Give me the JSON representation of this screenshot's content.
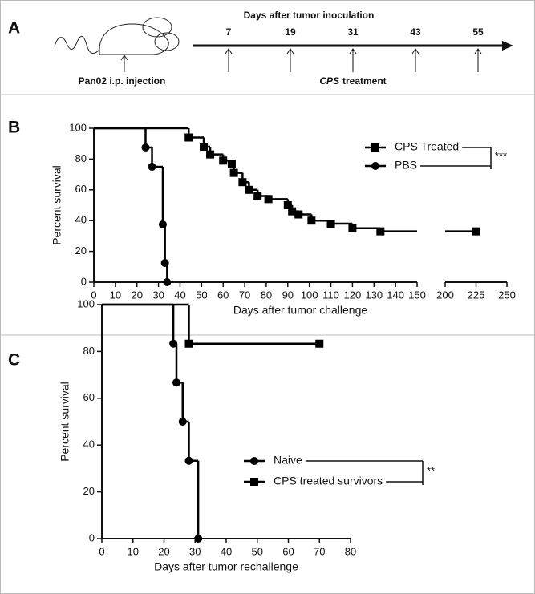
{
  "panels": {
    "a": "A",
    "b": "B",
    "c": "C"
  },
  "schedule": {
    "title": "Days after tumor inoculation",
    "days": [
      7,
      19,
      31,
      43,
      55
    ],
    "injection": "Pan02 i.p. injection",
    "treatment_drug": "CPS",
    "treatment_word": "treatment"
  },
  "chart_data": [
    {
      "type": "step",
      "ylabel": "Percent survival",
      "xlabel": "Days after tumor challenge",
      "xlim": [
        0,
        250
      ],
      "xbreak": [
        150,
        200
      ],
      "xticks": [
        0,
        10,
        20,
        30,
        40,
        50,
        60,
        70,
        80,
        90,
        100,
        110,
        120,
        130,
        140,
        150,
        200,
        225,
        250
      ],
      "ylim": [
        0,
        100
      ],
      "yticks": [
        0,
        20,
        40,
        60,
        80,
        100
      ],
      "significance": "***",
      "series": [
        {
          "name": "CPS Treated",
          "color": "#000000",
          "marker": "square",
          "x": [
            0,
            44,
            51,
            54,
            60,
            64,
            65,
            69,
            72,
            76,
            81,
            90,
            92,
            95,
            101,
            110,
            120,
            133,
            225
          ],
          "values": [
            100,
            94,
            88,
            83,
            79,
            77,
            71,
            65,
            60,
            56,
            54,
            50,
            46,
            44,
            40,
            38,
            35,
            33,
            33
          ]
        },
        {
          "name": "PBS",
          "color": "#000000",
          "marker": "circle",
          "x": [
            0,
            24,
            27,
            32,
            33,
            34
          ],
          "values": [
            100,
            87.5,
            75,
            37.5,
            12.5,
            0
          ]
        }
      ]
    },
    {
      "type": "step",
      "ylabel": "Percent survival",
      "xlabel": "Days after tumor rechallenge",
      "xlim": [
        0,
        80
      ],
      "xticks": [
        0,
        10,
        20,
        30,
        40,
        50,
        60,
        70,
        80
      ],
      "ylim": [
        0,
        100
      ],
      "yticks": [
        0,
        20,
        40,
        60,
        80,
        100
      ],
      "significance": "**",
      "series": [
        {
          "name": "Naive",
          "color": "#000000",
          "marker": "circle",
          "x": [
            0,
            23,
            24,
            26,
            28,
            31
          ],
          "values": [
            100,
            83.3,
            66.7,
            50,
            33.3,
            0
          ]
        },
        {
          "name": "CPS treated survivors",
          "color": "#000000",
          "marker": "square",
          "x": [
            0,
            28,
            70
          ],
          "values": [
            100,
            83.3,
            83.3
          ]
        }
      ]
    }
  ]
}
